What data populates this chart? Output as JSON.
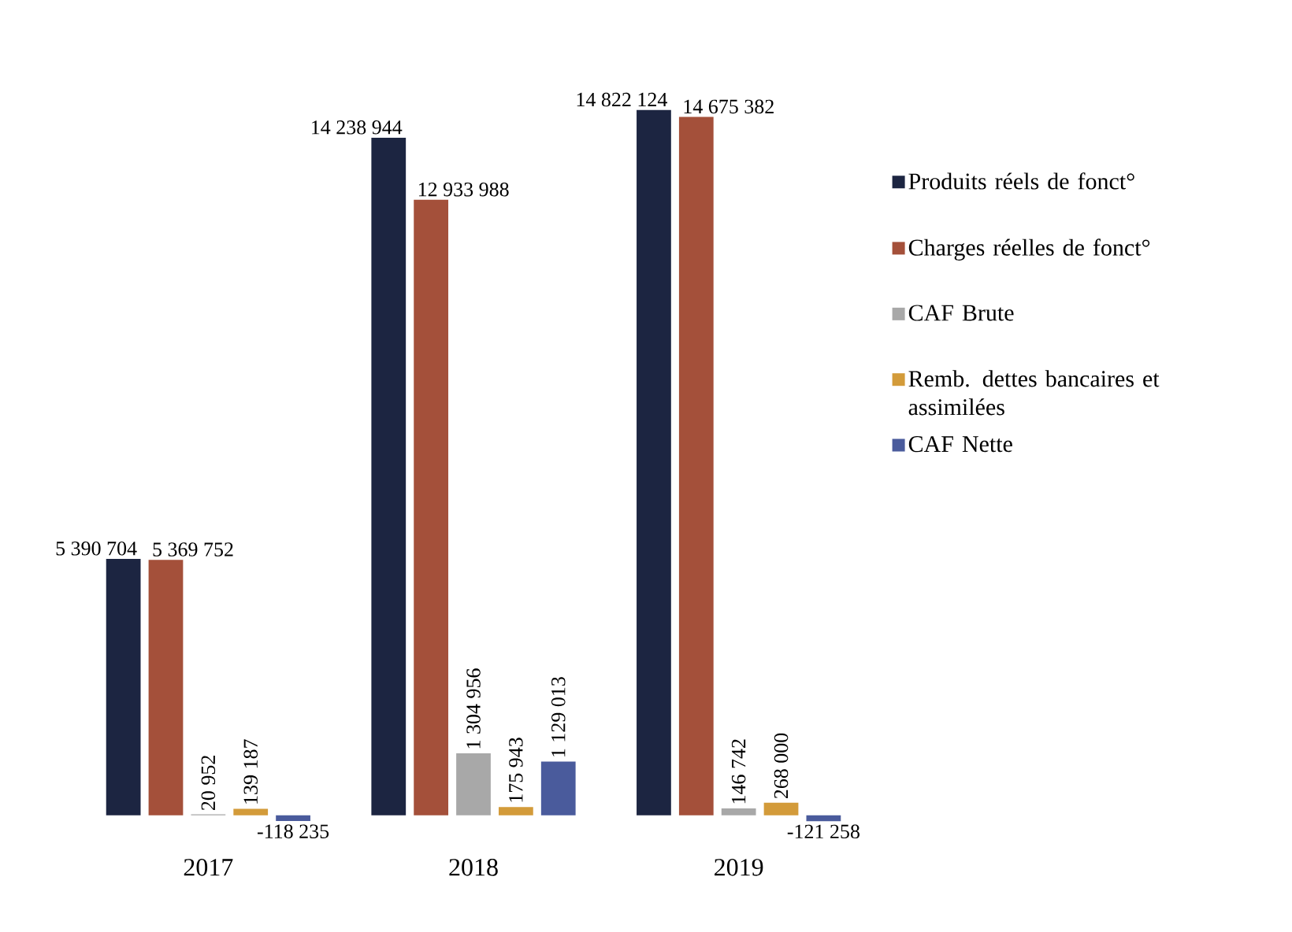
{
  "chart_data": {
    "type": "bar",
    "categories": [
      "2017",
      "2018",
      "2019"
    ],
    "legend": "right",
    "series": [
      {
        "name": "Produits réels de fonct°",
        "color": "#1c2541",
        "values": [
          5390704,
          14238944,
          14822124
        ],
        "value_labels": [
          "5 390 704",
          "14 238 944",
          "14 822 124"
        ]
      },
      {
        "name": "Charges réelles de fonct°",
        "color": "#a4503a",
        "values": [
          5369752,
          12933988,
          14675382
        ],
        "value_labels": [
          "5 369 752",
          "12 933 988",
          "14 675 382"
        ]
      },
      {
        "name": "CAF Brute",
        "color": "#a8a8a8",
        "values": [
          20952,
          1304956,
          146742
        ],
        "value_labels": [
          "20 952",
          "1 304 956",
          "146 742"
        ]
      },
      {
        "name": "Remb. dettes bancaires et assimilées",
        "color": "#d39b3a",
        "values": [
          139187,
          175943,
          268000
        ],
        "value_labels": [
          "139 187",
          "175 943",
          "268 000"
        ]
      },
      {
        "name": "CAF Nette",
        "color": "#4a5b9c",
        "values": [
          -118235,
          1129013,
          -121258
        ],
        "value_labels": [
          "-118 235",
          "1 129 013",
          "-121 258"
        ]
      }
    ]
  }
}
